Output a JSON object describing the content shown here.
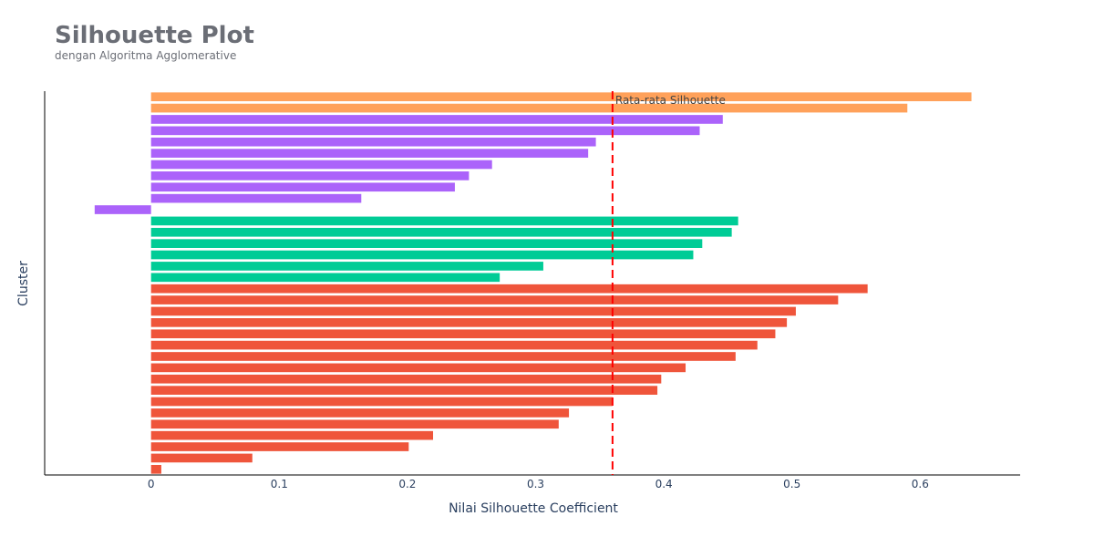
{
  "header": {
    "title": "Silhouette Plot",
    "subtitle": "dengan Algoritma Agglomerative"
  },
  "chart_data": {
    "type": "bar",
    "orientation": "horizontal",
    "title": "Silhouette Plot",
    "subtitle": "dengan Algoritma Agglomerative",
    "xlabel": "Nilai Silhouette Coefficient",
    "ylabel": "Cluster",
    "xlim": [
      -0.083,
      0.678
    ],
    "xticks": [
      0,
      0.1,
      0.2,
      0.3,
      0.4,
      0.5,
      0.6
    ],
    "xtick_labels": [
      "0",
      "0.1",
      "0.2",
      "0.3",
      "0.4",
      "0.5",
      "0.6"
    ],
    "grid": false,
    "legend": "none",
    "series": [
      {
        "color": "#ffa15a",
        "values": [
          0.64,
          0.59
        ]
      },
      {
        "color": "#ab63fa",
        "values": [
          0.446,
          0.428,
          0.347,
          0.341,
          0.266,
          0.248,
          0.237,
          0.164,
          -0.044
        ]
      },
      {
        "color": "#00cc96",
        "values": [
          0.458,
          0.453,
          0.43,
          0.423,
          0.306,
          0.272
        ]
      },
      {
        "color": "#ef553b",
        "values": [
          0.559,
          0.536,
          0.503,
          0.496,
          0.487,
          0.473,
          0.456,
          0.417,
          0.398,
          0.395,
          0.36,
          0.326,
          0.318,
          0.22,
          0.201,
          0.079,
          0.008
        ]
      }
    ],
    "reference_line": {
      "label": "Rata-rata Silhouette",
      "x": 0.36,
      "color": "#ff0000",
      "style": "dashed"
    }
  }
}
